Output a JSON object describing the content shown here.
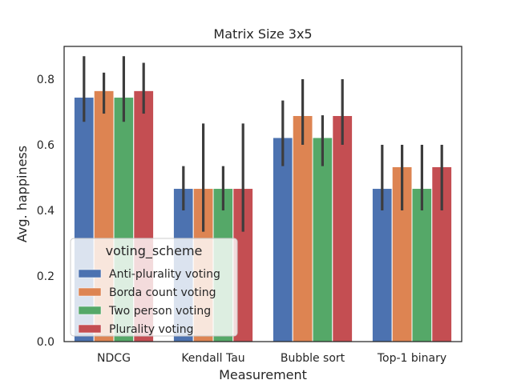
{
  "chart_data": {
    "type": "bar",
    "title": "Matrix Size 3x5",
    "xlabel": "Measurement",
    "ylabel": "Avg. happiness",
    "ylim": [
      0,
      0.9
    ],
    "yticks": [
      "0.0",
      "0.2",
      "0.4",
      "0.6",
      "0.8"
    ],
    "categories": [
      "NDCG",
      "Kendall Tau",
      "Bubble sort",
      "Top-1 binary"
    ],
    "legend_title": "voting_scheme",
    "legend_position": "lower-left",
    "grid": false,
    "series": [
      {
        "name": "Anti-plurality voting",
        "color": "#4c72b0",
        "values": [
          0.745,
          0.467,
          0.622,
          0.467
        ],
        "ci": [
          [
            0.67,
            0.87
          ],
          [
            0.4,
            0.535
          ],
          [
            0.535,
            0.735
          ],
          [
            0.4,
            0.6
          ]
        ]
      },
      {
        "name": "Borda count voting",
        "color": "#dd8452",
        "values": [
          0.765,
          0.467,
          0.689,
          0.533
        ],
        "ci": [
          [
            0.695,
            0.82
          ],
          [
            0.335,
            0.665
          ],
          [
            0.6,
            0.8
          ],
          [
            0.4,
            0.6
          ]
        ]
      },
      {
        "name": "Two person voting",
        "color": "#55a868",
        "values": [
          0.745,
          0.467,
          0.622,
          0.467
        ],
        "ci": [
          [
            0.67,
            0.87
          ],
          [
            0.4,
            0.535
          ],
          [
            0.535,
            0.69
          ],
          [
            0.4,
            0.6
          ]
        ]
      },
      {
        "name": "Plurality voting",
        "color": "#c44e52",
        "values": [
          0.765,
          0.467,
          0.689,
          0.533
        ],
        "ci": [
          [
            0.695,
            0.85
          ],
          [
            0.335,
            0.665
          ],
          [
            0.6,
            0.8
          ],
          [
            0.4,
            0.6
          ]
        ]
      }
    ]
  }
}
